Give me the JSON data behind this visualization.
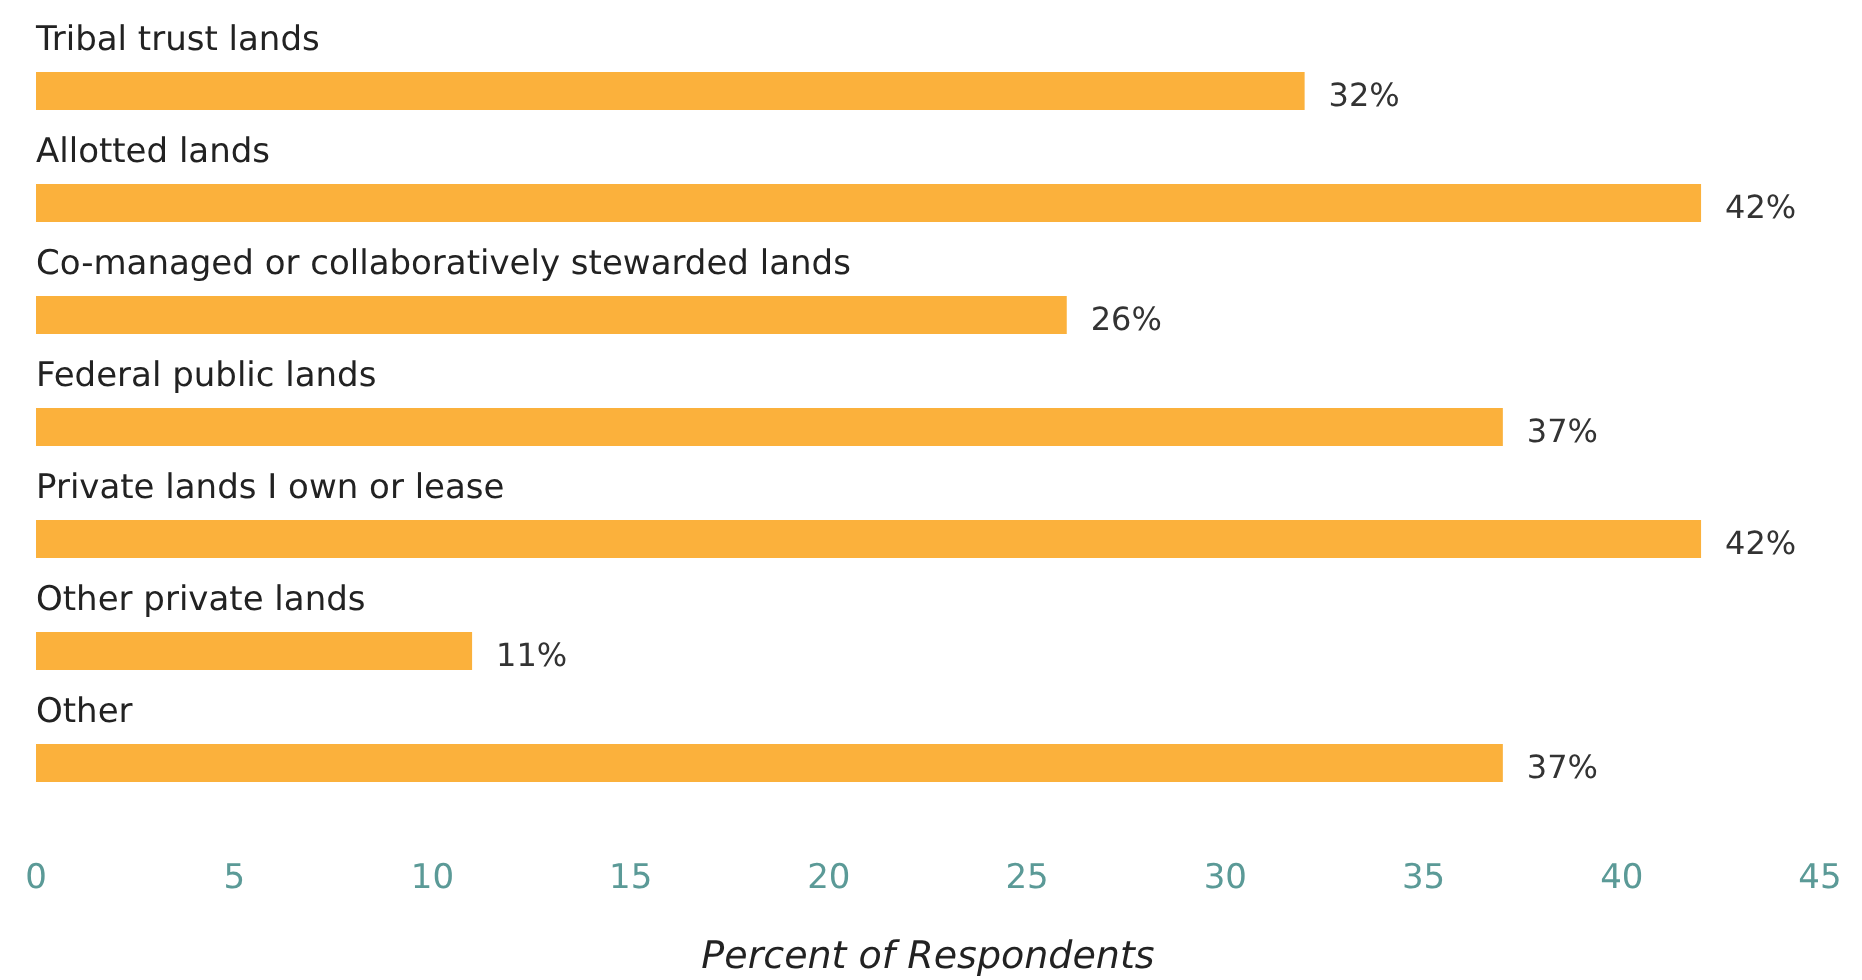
{
  "chart_data": {
    "type": "bar",
    "orientation": "horizontal",
    "categories": [
      "Tribal trust lands",
      "Allotted lands",
      "Co-managed or collaboratively stewarded lands",
      "Federal public lands",
      "Private lands I own or lease",
      "Other private lands",
      "Other"
    ],
    "values": [
      32,
      42,
      26,
      37,
      42,
      11,
      37
    ],
    "value_labels": [
      "32%",
      "42%",
      "26%",
      "37%",
      "42%",
      "11%",
      "37%"
    ],
    "color": "#fbb13c",
    "xlim": [
      0,
      45
    ],
    "xticks": [
      0,
      5,
      10,
      15,
      20,
      25,
      30,
      35,
      40,
      45
    ],
    "xlabel": "Percent of Respondents",
    "grid": false
  }
}
